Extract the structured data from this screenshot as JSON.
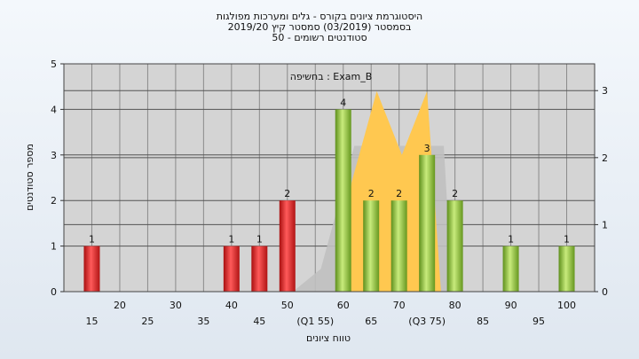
{
  "chart_data": {
    "type": "bar",
    "title_lines": [
      "היסטוגרמת ציונים בקורס - גלים ומערכות מפולגות",
      "בסמסטר  (03/2019)  סמסטר קיץ 2019/20",
      "סטודנטים רשומים - 50"
    ],
    "annotation": "בחשיפה : Exam_B",
    "xlabel": "טווח ציונים",
    "ylabel": "מספר סטודנטים",
    "ylim": [
      0,
      5
    ],
    "y_ticks": [
      0,
      1,
      2,
      3,
      4,
      5
    ],
    "y2lim": [
      0,
      3.4
    ],
    "y2_ticks": [
      0,
      1,
      2,
      3
    ],
    "grid": true,
    "x_ticks_upper": [
      "20",
      "30",
      "40",
      "50",
      "60",
      "70",
      "80",
      "90",
      "100"
    ],
    "x_ticks_lower": [
      "15",
      "25",
      "35",
      "45",
      "(Q1 55)",
      "65",
      "(Q3 75)",
      "85",
      "95"
    ],
    "bars": [
      {
        "x": 15,
        "value": 1,
        "label": "1",
        "color": "red"
      },
      {
        "x": 40,
        "value": 1,
        "label": "1",
        "color": "red"
      },
      {
        "x": 45,
        "value": 1,
        "label": "1",
        "color": "red"
      },
      {
        "x": 50,
        "value": 2,
        "label": "2",
        "color": "red"
      },
      {
        "x": 60,
        "value": 4,
        "label": "4",
        "color": "green"
      },
      {
        "x": 65,
        "value": 2,
        "label": "2",
        "color": "green"
      },
      {
        "x": 70,
        "value": 2,
        "label": "2",
        "color": "green"
      },
      {
        "x": 75,
        "value": 3,
        "label": "3",
        "color": "green"
      },
      {
        "x": 80,
        "value": 2,
        "label": "2",
        "color": "green"
      },
      {
        "x": 90,
        "value": 1,
        "label": "1",
        "color": "green"
      },
      {
        "x": 100,
        "value": 1,
        "label": "1",
        "color": "green"
      }
    ],
    "colors": {
      "red": "#e01e1e",
      "green": "#8fc23a",
      "yellow_area": "#ffc850",
      "grey_area": "#c0c0c0",
      "plot_bg": "#d4d4d4"
    }
  }
}
